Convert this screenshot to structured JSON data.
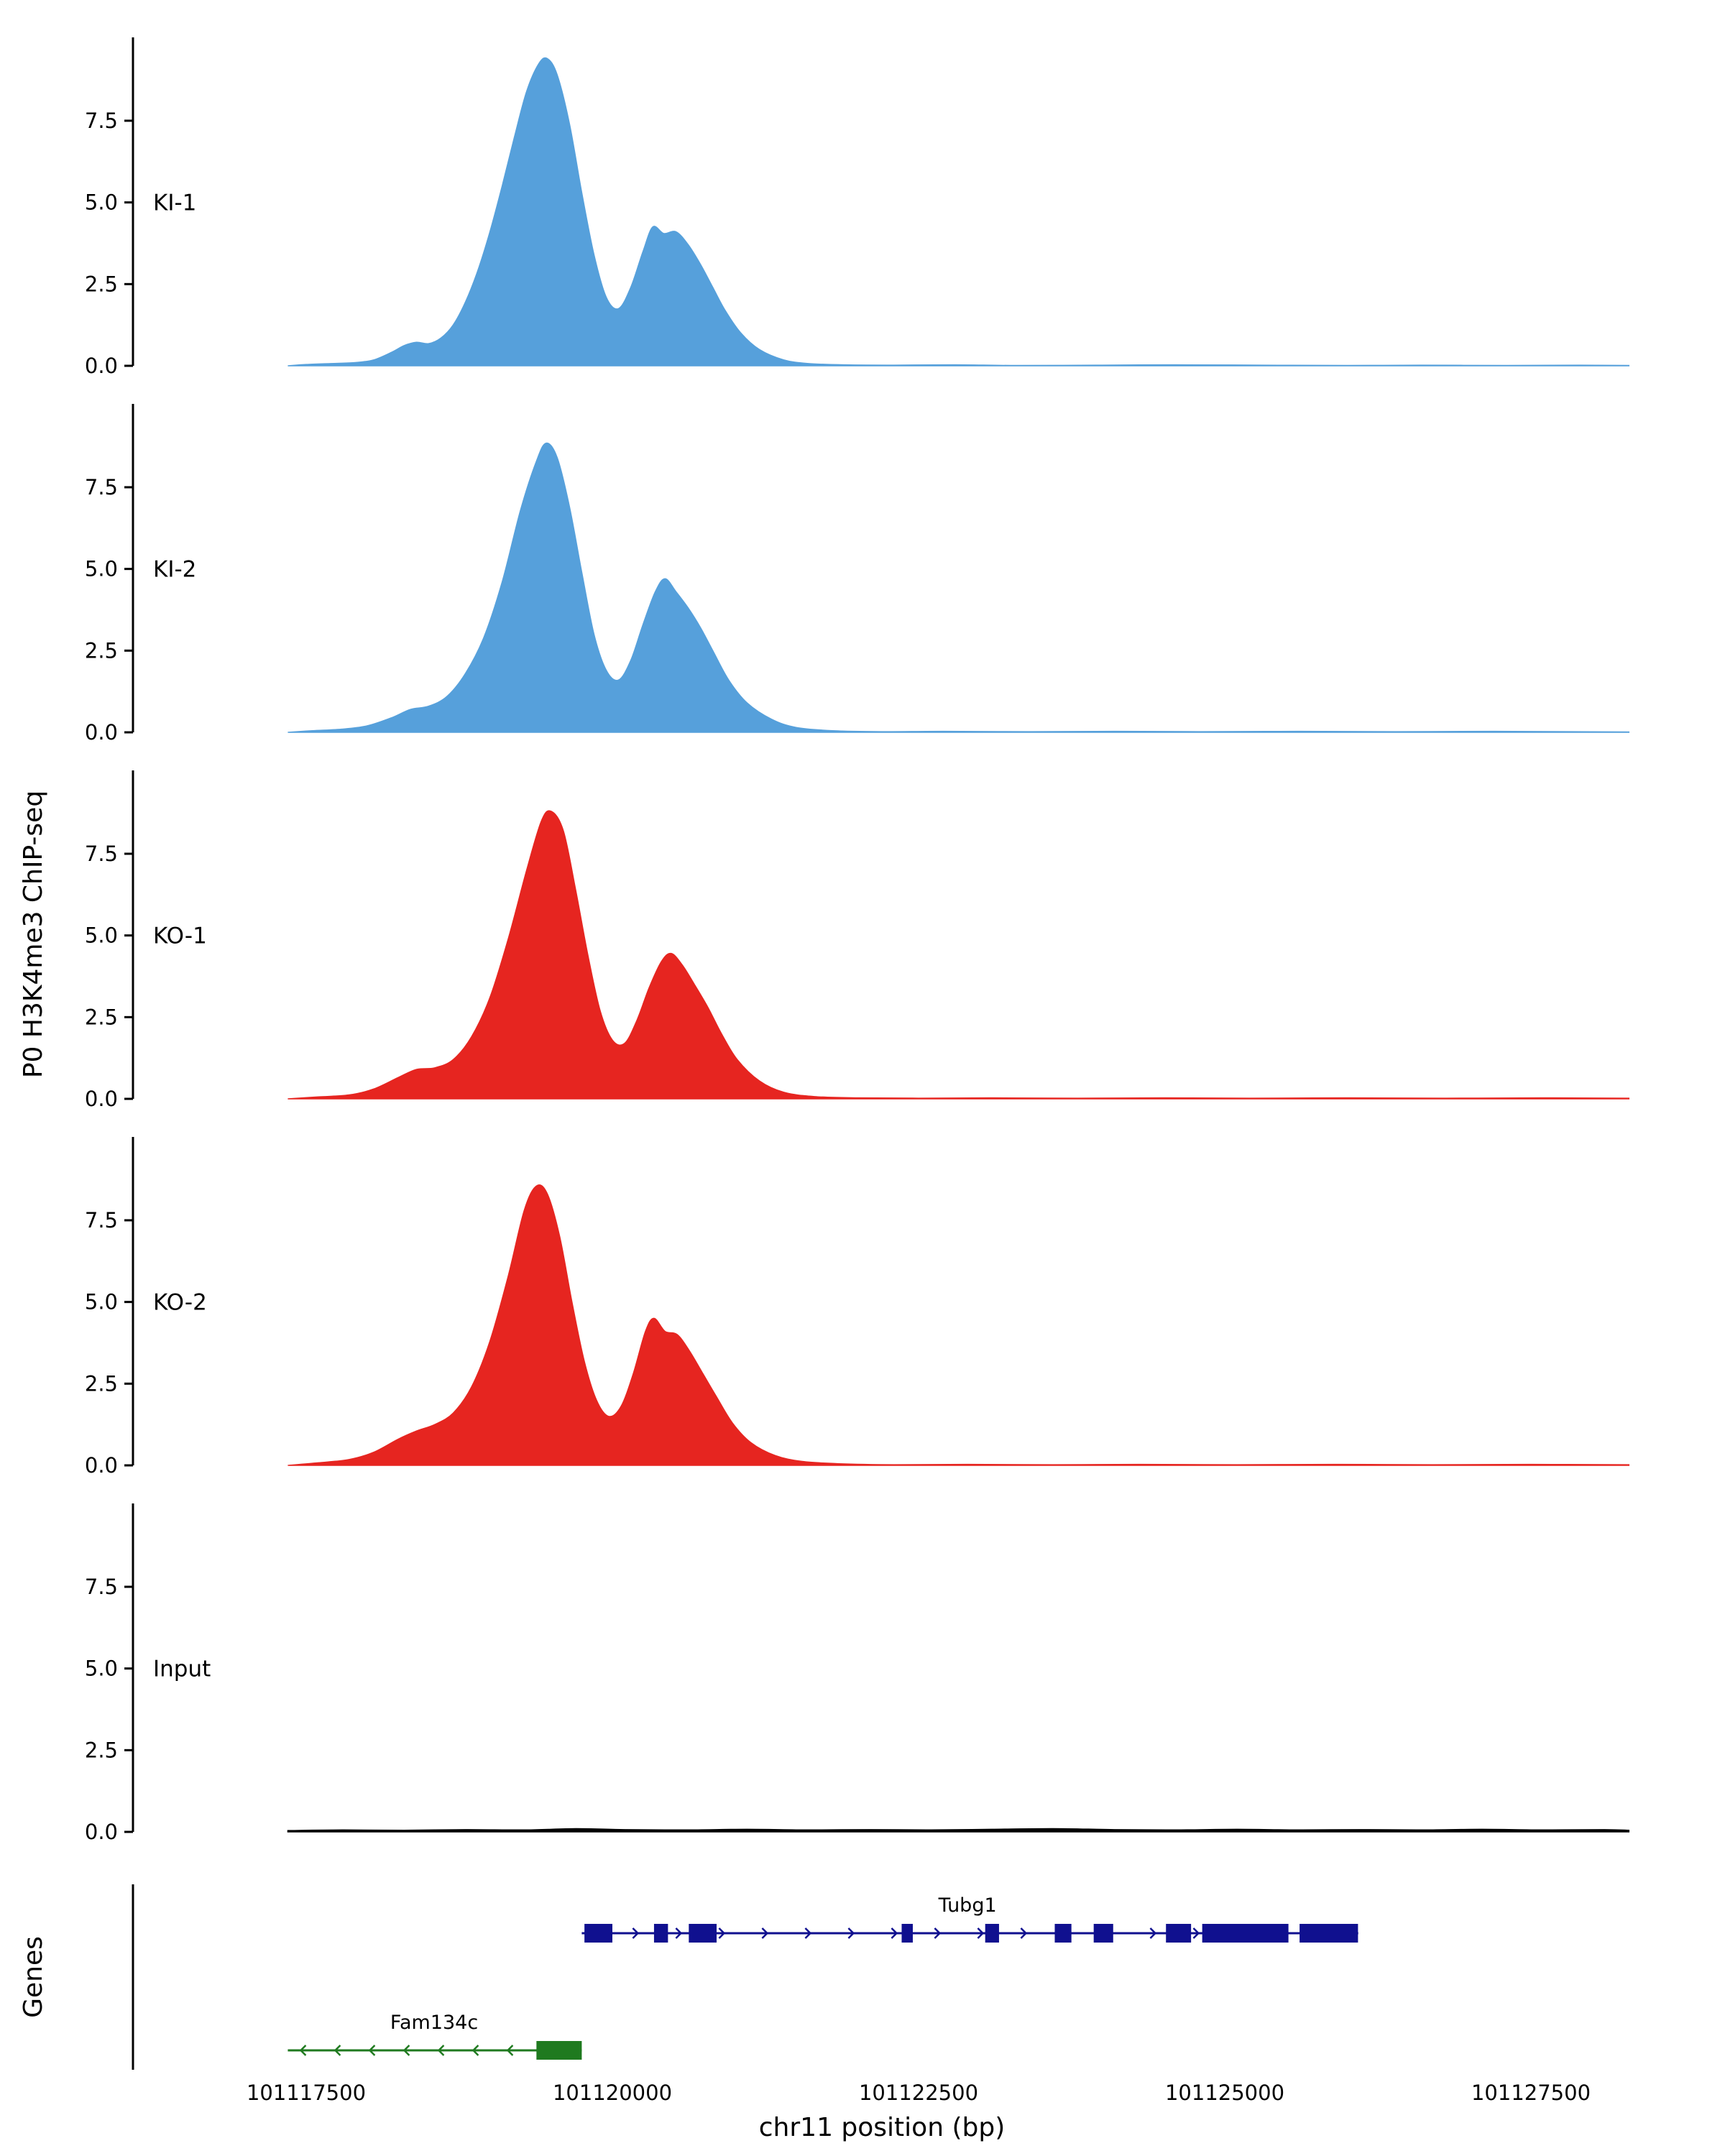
{
  "chart_data": {
    "type": "area",
    "title": "",
    "xlabel": "chr11 position (bp)",
    "ylabel": "P0 H3K4me3 ChIP-seq",
    "genes_label": "Genes",
    "x_domain": [
      101116100,
      101128900
    ],
    "x_ticks": [
      101117500,
      101120000,
      101122500,
      101125000,
      101127500
    ],
    "y_ticks": [
      "0.0",
      "2.5",
      "5.0",
      "7.5"
    ],
    "y_max": 9.6,
    "grid": false,
    "legend": "none",
    "tracks": [
      {
        "name": "KI-1",
        "color": "#56A0DB",
        "points": [
          [
            101117350,
            0
          ],
          [
            101117500,
            0.04
          ],
          [
            101117700,
            0.07
          ],
          [
            101117900,
            0.1
          ],
          [
            101118050,
            0.18
          ],
          [
            101118200,
            0.42
          ],
          [
            101118300,
            0.62
          ],
          [
            101118400,
            0.72
          ],
          [
            101118500,
            0.68
          ],
          [
            101118600,
            0.85
          ],
          [
            101118700,
            1.25
          ],
          [
            101118800,
            1.95
          ],
          [
            101118900,
            2.9
          ],
          [
            101119000,
            4.1
          ],
          [
            101119100,
            5.5
          ],
          [
            101119200,
            7.0
          ],
          [
            101119300,
            8.4
          ],
          [
            101119400,
            9.25
          ],
          [
            101119470,
            9.4
          ],
          [
            101119550,
            8.9
          ],
          [
            101119650,
            7.4
          ],
          [
            101119750,
            5.3
          ],
          [
            101119850,
            3.4
          ],
          [
            101119950,
            2.1
          ],
          [
            101120050,
            1.75
          ],
          [
            101120150,
            2.4
          ],
          [
            101120250,
            3.5
          ],
          [
            101120330,
            4.25
          ],
          [
            101120420,
            4.05
          ],
          [
            101120520,
            4.1
          ],
          [
            101120620,
            3.7
          ],
          [
            101120720,
            3.1
          ],
          [
            101120820,
            2.4
          ],
          [
            101120920,
            1.7
          ],
          [
            101121050,
            1.0
          ],
          [
            101121200,
            0.5
          ],
          [
            101121400,
            0.18
          ],
          [
            101121600,
            0.07
          ],
          [
            101121900,
            0.03
          ],
          [
            101122300,
            0.02
          ],
          [
            101122800,
            0.03
          ],
          [
            101123300,
            0.01
          ],
          [
            101124000,
            0.02
          ],
          [
            101124600,
            0.03
          ],
          [
            101125300,
            0.02
          ],
          [
            101126000,
            0.01
          ],
          [
            101126600,
            0.02
          ],
          [
            101127300,
            0.01
          ],
          [
            101127900,
            0.02
          ],
          [
            101128300,
            0.01
          ]
        ]
      },
      {
        "name": "KI-2",
        "color": "#56A0DB",
        "points": [
          [
            101117350,
            0
          ],
          [
            101117550,
            0.05
          ],
          [
            101117800,
            0.1
          ],
          [
            101118000,
            0.2
          ],
          [
            101118200,
            0.45
          ],
          [
            101118350,
            0.7
          ],
          [
            101118500,
            0.8
          ],
          [
            101118650,
            1.1
          ],
          [
            101118800,
            1.8
          ],
          [
            101118950,
            2.9
          ],
          [
            101119100,
            4.6
          ],
          [
            101119250,
            6.8
          ],
          [
            101119380,
            8.3
          ],
          [
            101119460,
            8.85
          ],
          [
            101119550,
            8.4
          ],
          [
            101119650,
            6.9
          ],
          [
            101119750,
            4.9
          ],
          [
            101119850,
            3.0
          ],
          [
            101119950,
            1.9
          ],
          [
            101120050,
            1.6
          ],
          [
            101120150,
            2.2
          ],
          [
            101120250,
            3.3
          ],
          [
            101120350,
            4.3
          ],
          [
            101120430,
            4.7
          ],
          [
            101120520,
            4.3
          ],
          [
            101120620,
            3.8
          ],
          [
            101120720,
            3.2
          ],
          [
            101120820,
            2.5
          ],
          [
            101120950,
            1.6
          ],
          [
            101121100,
            0.9
          ],
          [
            101121300,
            0.4
          ],
          [
            101121500,
            0.15
          ],
          [
            101121800,
            0.05
          ],
          [
            101122200,
            0.02
          ],
          [
            101122700,
            0.03
          ],
          [
            101123400,
            0.02
          ],
          [
            101124100,
            0.03
          ],
          [
            101124800,
            0.02
          ],
          [
            101125600,
            0.03
          ],
          [
            101126400,
            0.02
          ],
          [
            101127200,
            0.03
          ],
          [
            101128300,
            0.01
          ]
        ]
      },
      {
        "name": "KO-1",
        "color": "#E62520",
        "points": [
          [
            101117350,
            0
          ],
          [
            101117600,
            0.06
          ],
          [
            101117850,
            0.12
          ],
          [
            101118050,
            0.3
          ],
          [
            101118250,
            0.65
          ],
          [
            101118400,
            0.9
          ],
          [
            101118550,
            0.95
          ],
          [
            101118700,
            1.2
          ],
          [
            101118850,
            1.9
          ],
          [
            101119000,
            3.1
          ],
          [
            101119150,
            4.9
          ],
          [
            101119300,
            7.0
          ],
          [
            101119420,
            8.5
          ],
          [
            101119500,
            8.8
          ],
          [
            101119600,
            8.2
          ],
          [
            101119700,
            6.4
          ],
          [
            101119800,
            4.4
          ],
          [
            101119900,
            2.7
          ],
          [
            101120000,
            1.8
          ],
          [
            101120100,
            1.7
          ],
          [
            101120200,
            2.4
          ],
          [
            101120300,
            3.4
          ],
          [
            101120400,
            4.2
          ],
          [
            101120480,
            4.45
          ],
          [
            101120570,
            4.1
          ],
          [
            101120670,
            3.5
          ],
          [
            101120780,
            2.8
          ],
          [
            101120890,
            2.0
          ],
          [
            101121020,
            1.2
          ],
          [
            101121200,
            0.55
          ],
          [
            101121400,
            0.2
          ],
          [
            101121650,
            0.07
          ],
          [
            101122000,
            0.03
          ],
          [
            101122500,
            0.02
          ],
          [
            101123100,
            0.03
          ],
          [
            101123800,
            0.02
          ],
          [
            101124500,
            0.03
          ],
          [
            101125200,
            0.02
          ],
          [
            101126000,
            0.03
          ],
          [
            101126800,
            0.02
          ],
          [
            101127600,
            0.03
          ],
          [
            101128300,
            0.02
          ]
        ]
      },
      {
        "name": "KO-2",
        "color": "#E62520",
        "points": [
          [
            101117350,
            0
          ],
          [
            101117600,
            0.08
          ],
          [
            101117850,
            0.18
          ],
          [
            101118050,
            0.4
          ],
          [
            101118250,
            0.8
          ],
          [
            101118400,
            1.05
          ],
          [
            101118550,
            1.25
          ],
          [
            101118700,
            1.6
          ],
          [
            101118850,
            2.4
          ],
          [
            101119000,
            3.8
          ],
          [
            101119150,
            5.8
          ],
          [
            101119280,
            7.8
          ],
          [
            101119380,
            8.55
          ],
          [
            101119470,
            8.3
          ],
          [
            101119570,
            7.0
          ],
          [
            101119670,
            5.0
          ],
          [
            101119770,
            3.2
          ],
          [
            101119870,
            2.0
          ],
          [
            101119970,
            1.5
          ],
          [
            101120070,
            1.8
          ],
          [
            101120170,
            2.8
          ],
          [
            101120270,
            4.1
          ],
          [
            101120340,
            4.5
          ],
          [
            101120430,
            4.1
          ],
          [
            101120530,
            4.0
          ],
          [
            101120630,
            3.5
          ],
          [
            101120740,
            2.8
          ],
          [
            101120850,
            2.1
          ],
          [
            101120980,
            1.3
          ],
          [
            101121130,
            0.7
          ],
          [
            101121330,
            0.3
          ],
          [
            101121550,
            0.12
          ],
          [
            101121850,
            0.05
          ],
          [
            101122300,
            0.02
          ],
          [
            101122900,
            0.03
          ],
          [
            101123600,
            0.02
          ],
          [
            101124300,
            0.03
          ],
          [
            101125100,
            0.02
          ],
          [
            101125900,
            0.03
          ],
          [
            101126700,
            0.02
          ],
          [
            101127500,
            0.03
          ],
          [
            101128300,
            0.02
          ]
        ]
      },
      {
        "name": "Input",
        "color": "#000000",
        "points": [
          [
            101117350,
            0.04
          ],
          [
            101117800,
            0.06
          ],
          [
            101118300,
            0.05
          ],
          [
            101118800,
            0.07
          ],
          [
            101119300,
            0.06
          ],
          [
            101119700,
            0.1
          ],
          [
            101120100,
            0.07
          ],
          [
            101120600,
            0.06
          ],
          [
            101121100,
            0.08
          ],
          [
            101121600,
            0.06
          ],
          [
            101122100,
            0.07
          ],
          [
            101122600,
            0.06
          ],
          [
            101123100,
            0.08
          ],
          [
            101123600,
            0.1
          ],
          [
            101124100,
            0.07
          ],
          [
            101124600,
            0.06
          ],
          [
            101125100,
            0.08
          ],
          [
            101125600,
            0.06
          ],
          [
            101126100,
            0.07
          ],
          [
            101126600,
            0.06
          ],
          [
            101127100,
            0.08
          ],
          [
            101127600,
            0.06
          ],
          [
            101128100,
            0.07
          ],
          [
            101128300,
            0.05
          ]
        ]
      }
    ],
    "genes": [
      {
        "name": "Tubg1",
        "color": "#10108F",
        "strand": "+",
        "start": 101119750,
        "end": 101126090,
        "label_pos": 101122900,
        "exons": [
          [
            101119772,
            101120000
          ],
          [
            101120340,
            101120454
          ],
          [
            101120624,
            101120851
          ],
          [
            101122362,
            101122453
          ],
          [
            101123044,
            101123157
          ],
          [
            101123612,
            101123748
          ],
          [
            101123930,
            101124089
          ],
          [
            101124520,
            101124725
          ],
          [
            101124816,
            101125520
          ],
          [
            101125611,
            101126088
          ]
        ]
      },
      {
        "name": "Fam134c",
        "color": "#1F7A1F",
        "strand": "-",
        "start": 101117350,
        "end": 101119750,
        "label_pos": 101118545,
        "exons": [
          [
            101119380,
            101119750
          ]
        ]
      }
    ]
  }
}
